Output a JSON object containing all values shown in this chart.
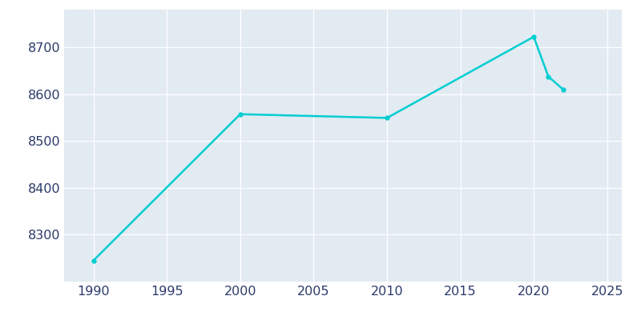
{
  "years": [
    1990,
    2000,
    2010,
    2020,
    2021,
    2022
  ],
  "population": [
    8245,
    8557,
    8549,
    8722,
    8637,
    8610
  ],
  "line_color": "#00CED1",
  "fig_bg_color": "#FFFFFF",
  "plot_bg_color": "#E2EAF2",
  "xlim": [
    1988,
    2026
  ],
  "ylim": [
    8200,
    8780
  ],
  "yticks": [
    8300,
    8400,
    8500,
    8600,
    8700
  ],
  "xticks": [
    1990,
    1995,
    2000,
    2005,
    2010,
    2015,
    2020,
    2025
  ],
  "line_width": 1.8,
  "marker": "o",
  "marker_size": 3.5,
  "tick_color": "#2B3A6B",
  "tick_fontsize": 11.5
}
